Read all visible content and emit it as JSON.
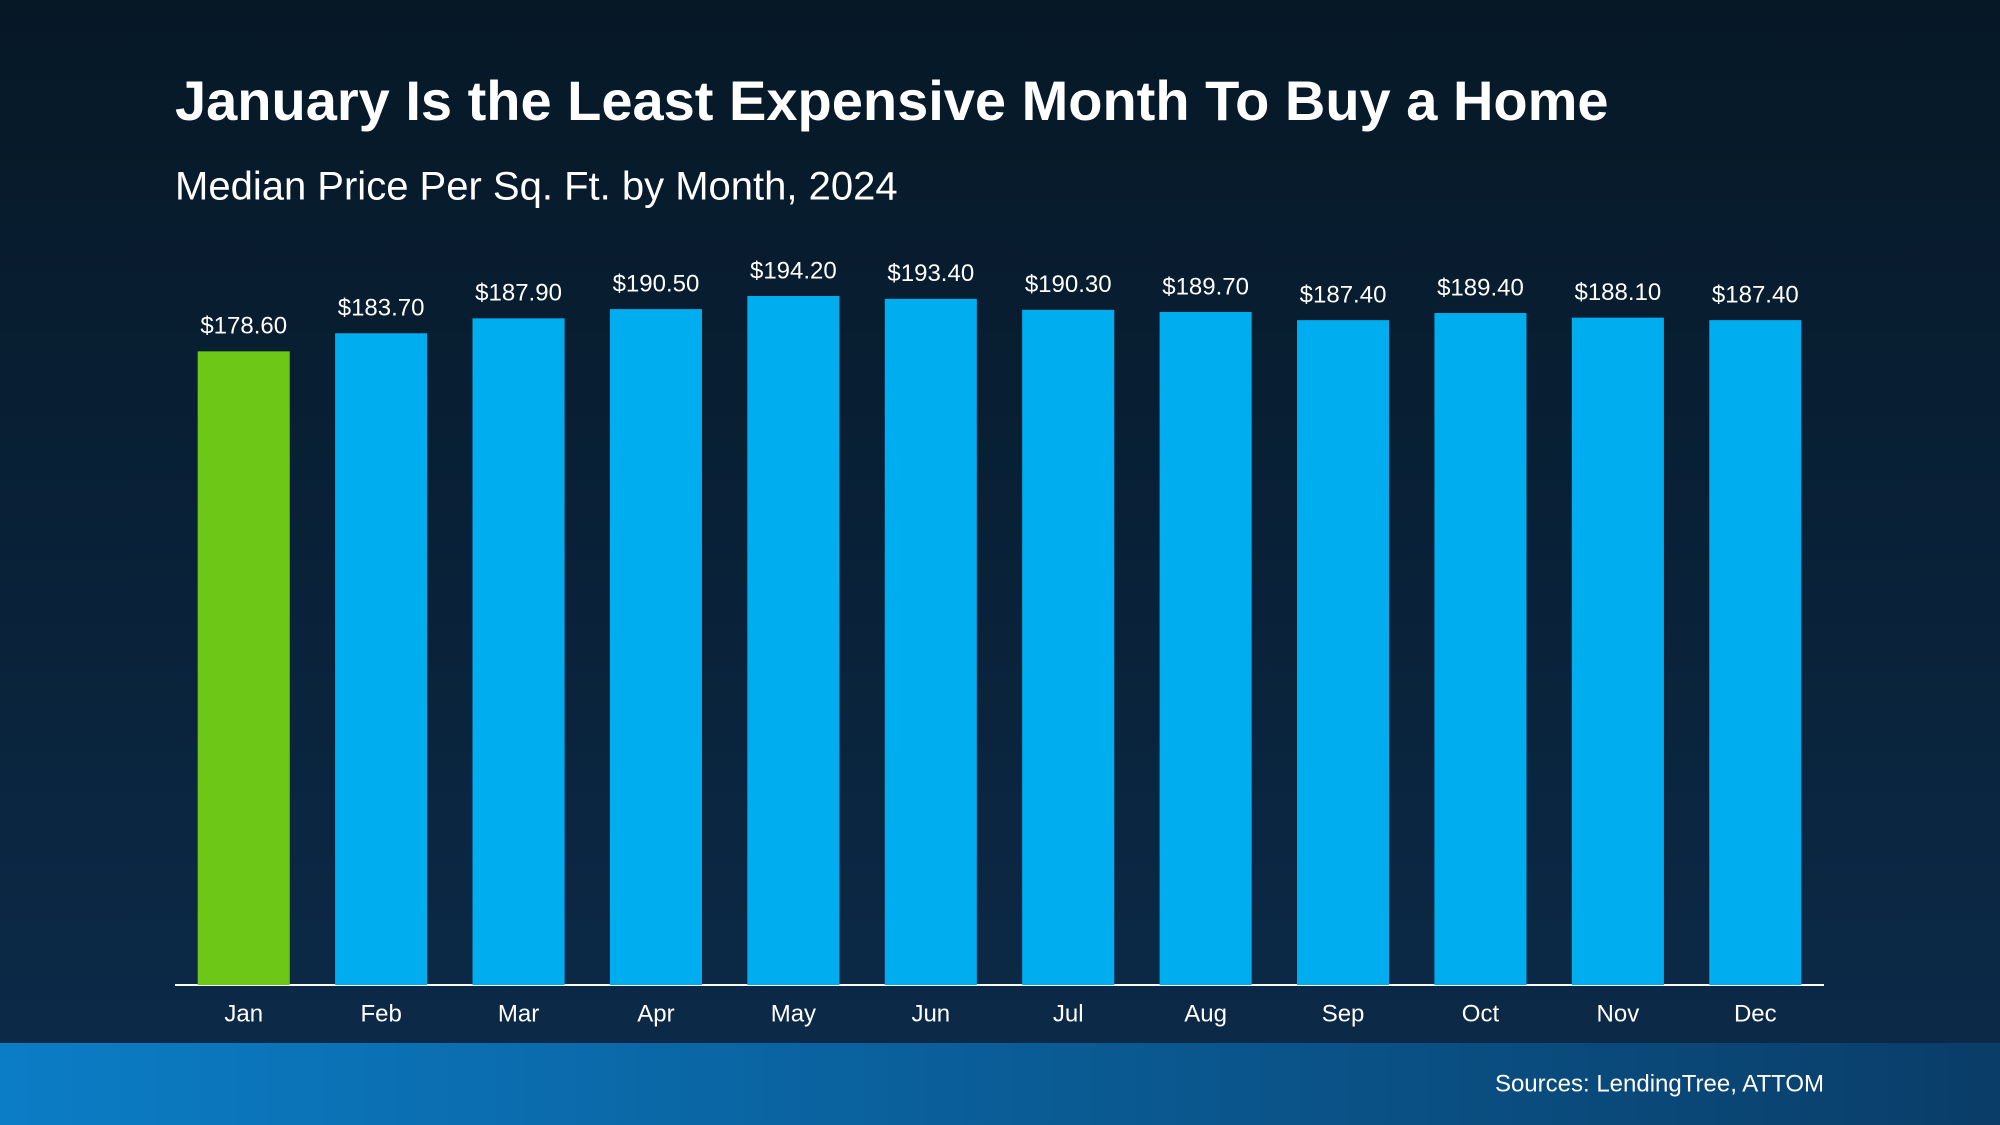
{
  "chart_data": {
    "type": "bar",
    "title": "January Is the Least Expensive Month To Buy a Home",
    "subtitle": "Median Price Per Sq. Ft. by Month, 2024",
    "categories": [
      "Jan",
      "Feb",
      "Mar",
      "Apr",
      "May",
      "Jun",
      "Jul",
      "Aug",
      "Sep",
      "Oct",
      "Nov",
      "Dec"
    ],
    "values": [
      178.6,
      183.7,
      187.9,
      190.5,
      194.2,
      193.4,
      190.3,
      189.7,
      187.4,
      189.4,
      188.1,
      187.4
    ],
    "value_labels": [
      "$178.60",
      "$183.70",
      "$187.90",
      "$190.50",
      "$194.20",
      "$193.40",
      "$190.30",
      "$189.70",
      "$187.40",
      "$189.40",
      "$188.10",
      "$187.40"
    ],
    "colors": [
      "#6cc716",
      "#00aeef",
      "#00aeef",
      "#00aeef",
      "#00aeef",
      "#00aeef",
      "#00aeef",
      "#00aeef",
      "#00aeef",
      "#00aeef",
      "#00aeef",
      "#00aeef"
    ],
    "source": "Sources: LendingTree, ATTOM"
  }
}
